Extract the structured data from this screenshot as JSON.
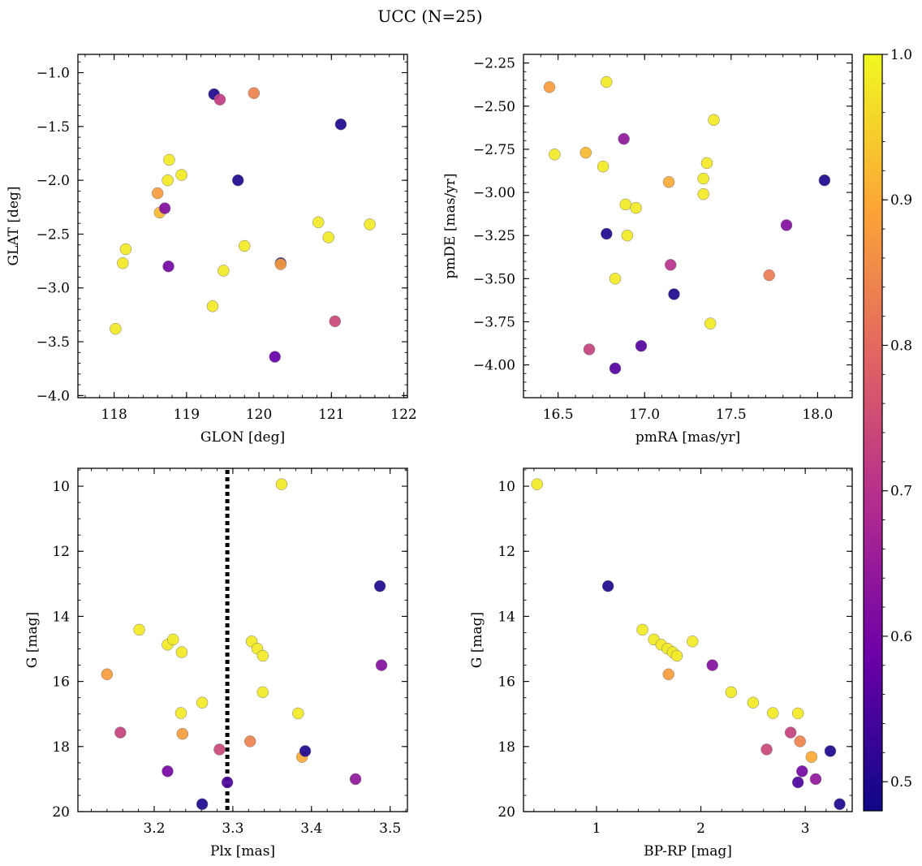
{
  "figure": {
    "suptitle": "UCC (N=25)"
  },
  "colorbar": {
    "min": 0.48,
    "max": 1.0,
    "ticks": [
      0.5,
      0.6,
      0.7,
      0.8,
      0.9,
      1.0
    ],
    "tick_labels": [
      "0.5",
      "0.6",
      "0.7",
      "0.8",
      "0.9",
      "1.0"
    ],
    "colormap": "plasma",
    "colormap_stops": [
      "#0d0887",
      "#6a00a8",
      "#b12a90",
      "#e16462",
      "#fca636",
      "#f0f921"
    ]
  },
  "chart_data": [
    {
      "type": "scatter",
      "xlabel": "GLON [deg]",
      "ylabel": "GLAT [deg]",
      "xlim": [
        117.5,
        122.05
      ],
      "ylim": [
        -4.02,
        -0.83
      ],
      "xticks": [
        118,
        119,
        120,
        121,
        122
      ],
      "xtick_labels": [
        "118",
        "119",
        "120",
        "121",
        "122"
      ],
      "yticks": [
        -4.0,
        -3.5,
        -3.0,
        -2.5,
        -2.0,
        -1.5,
        -1.0
      ],
      "ytick_labels": [
        "−4.0",
        "−3.5",
        "−3.0",
        "−2.5",
        "−2.0",
        "−1.5",
        "−1.0"
      ],
      "y_inverted": false,
      "points": [
        {
          "x": 118.02,
          "y": -3.38,
          "c": 0.98
        },
        {
          "x": 118.12,
          "y": -2.77,
          "c": 0.98
        },
        {
          "x": 118.16,
          "y": -2.64,
          "c": 0.98
        },
        {
          "x": 118.6,
          "y": -2.12,
          "c": 0.88
        },
        {
          "x": 118.63,
          "y": -2.3,
          "c": 0.92
        },
        {
          "x": 118.7,
          "y": -2.26,
          "c": 0.62
        },
        {
          "x": 118.74,
          "y": -2.0,
          "c": 0.98
        },
        {
          "x": 118.76,
          "y": -1.81,
          "c": 0.98
        },
        {
          "x": 118.75,
          "y": -2.8,
          "c": 0.6
        },
        {
          "x": 118.93,
          "y": -1.95,
          "c": 0.98
        },
        {
          "x": 119.36,
          "y": -3.17,
          "c": 0.98
        },
        {
          "x": 119.38,
          "y": -1.2,
          "c": 0.5
        },
        {
          "x": 119.46,
          "y": -1.25,
          "c": 0.72
        },
        {
          "x": 119.51,
          "y": -2.84,
          "c": 0.98
        },
        {
          "x": 119.71,
          "y": -2.0,
          "c": 0.5
        },
        {
          "x": 119.8,
          "y": -2.61,
          "c": 0.98
        },
        {
          "x": 119.93,
          "y": -1.19,
          "c": 0.84
        },
        {
          "x": 120.22,
          "y": -3.64,
          "c": 0.58
        },
        {
          "x": 120.3,
          "y": -2.77,
          "c": 0.5
        },
        {
          "x": 120.3,
          "y": -2.78,
          "c": 0.88
        },
        {
          "x": 120.82,
          "y": -2.39,
          "c": 0.98
        },
        {
          "x": 120.96,
          "y": -2.53,
          "c": 0.98
        },
        {
          "x": 121.05,
          "y": -3.31,
          "c": 0.74
        },
        {
          "x": 121.13,
          "y": -1.48,
          "c": 0.5
        },
        {
          "x": 121.53,
          "y": -2.41,
          "c": 0.98
        }
      ]
    },
    {
      "type": "scatter",
      "xlabel": "pmRA [mas/yr]",
      "ylabel": "pmDE [mas/yr]",
      "xlim": [
        16.3,
        18.2
      ],
      "ylim": [
        -4.19,
        -2.2
      ],
      "xticks": [
        16.5,
        17.0,
        17.5,
        18.0
      ],
      "xtick_labels": [
        "16.5",
        "17.0",
        "17.5",
        "18.0"
      ],
      "yticks": [
        -4.0,
        -3.75,
        -3.5,
        -3.25,
        -3.0,
        -2.75,
        -2.5,
        -2.25
      ],
      "ytick_labels": [
        "−4.00",
        "−3.75",
        "−3.50",
        "−3.25",
        "−3.00",
        "−2.75",
        "−2.50",
        "−2.25"
      ],
      "y_inverted": false,
      "points": [
        {
          "x": 16.45,
          "y": -2.39,
          "c": 0.88
        },
        {
          "x": 16.48,
          "y": -2.78,
          "c": 0.98
        },
        {
          "x": 16.66,
          "y": -2.77,
          "c": 0.92
        },
        {
          "x": 16.68,
          "y": -3.91,
          "c": 0.73
        },
        {
          "x": 16.76,
          "y": -2.85,
          "c": 0.98
        },
        {
          "x": 16.78,
          "y": -2.36,
          "c": 0.98
        },
        {
          "x": 16.78,
          "y": -3.24,
          "c": 0.5
        },
        {
          "x": 16.83,
          "y": -3.5,
          "c": 0.98
        },
        {
          "x": 16.83,
          "y": -4.02,
          "c": 0.56
        },
        {
          "x": 16.88,
          "y": -2.69,
          "c": 0.64
        },
        {
          "x": 16.89,
          "y": -3.07,
          "c": 0.98
        },
        {
          "x": 16.9,
          "y": -3.25,
          "c": 0.98
        },
        {
          "x": 16.95,
          "y": -3.09,
          "c": 0.98
        },
        {
          "x": 16.98,
          "y": -3.89,
          "c": 0.56
        },
        {
          "x": 17.14,
          "y": -2.94,
          "c": 0.9
        },
        {
          "x": 17.15,
          "y": -3.42,
          "c": 0.7
        },
        {
          "x": 17.17,
          "y": -3.59,
          "c": 0.5
        },
        {
          "x": 17.34,
          "y": -2.92,
          "c": 0.98
        },
        {
          "x": 17.34,
          "y": -3.01,
          "c": 0.98
        },
        {
          "x": 17.36,
          "y": -2.83,
          "c": 0.98
        },
        {
          "x": 17.38,
          "y": -3.76,
          "c": 0.98
        },
        {
          "x": 17.4,
          "y": -2.58,
          "c": 0.98
        },
        {
          "x": 17.72,
          "y": -3.48,
          "c": 0.83
        },
        {
          "x": 17.82,
          "y": -3.19,
          "c": 0.62
        },
        {
          "x": 18.04,
          "y": -2.93,
          "c": 0.5
        }
      ]
    },
    {
      "type": "scatter",
      "xlabel": "Plx [mas]",
      "ylabel": "G [mag]",
      "xlim": [
        3.103,
        3.522
      ],
      "ylim": [
        20.0,
        9.45
      ],
      "xticks": [
        3.2,
        3.3,
        3.4,
        3.5
      ],
      "xtick_labels": [
        "3.2",
        "3.3",
        "3.4",
        "3.5"
      ],
      "yticks": [
        10,
        12,
        14,
        16,
        18,
        20
      ],
      "ytick_labels": [
        "10",
        "12",
        "14",
        "16",
        "18",
        "20"
      ],
      "y_inverted": true,
      "vline": {
        "x": 3.293,
        "style": "dotted",
        "color": "#000000"
      },
      "points": [
        {
          "x": 3.14,
          "y": 15.78,
          "c": 0.88
        },
        {
          "x": 3.157,
          "y": 17.57,
          "c": 0.73
        },
        {
          "x": 3.181,
          "y": 14.41,
          "c": 0.98
        },
        {
          "x": 3.217,
          "y": 14.87,
          "c": 0.98
        },
        {
          "x": 3.217,
          "y": 18.76,
          "c": 0.6
        },
        {
          "x": 3.224,
          "y": 14.71,
          "c": 0.98
        },
        {
          "x": 3.235,
          "y": 15.1,
          "c": 0.98
        },
        {
          "x": 3.234,
          "y": 16.97,
          "c": 0.98
        },
        {
          "x": 3.236,
          "y": 17.61,
          "c": 0.88
        },
        {
          "x": 3.261,
          "y": 16.65,
          "c": 0.98
        },
        {
          "x": 3.261,
          "y": 19.77,
          "c": 0.5
        },
        {
          "x": 3.283,
          "y": 18.09,
          "c": 0.74
        },
        {
          "x": 3.293,
          "y": 19.1,
          "c": 0.55
        },
        {
          "x": 3.322,
          "y": 17.84,
          "c": 0.84
        },
        {
          "x": 3.324,
          "y": 14.77,
          "c": 0.98
        },
        {
          "x": 3.331,
          "y": 14.99,
          "c": 0.98
        },
        {
          "x": 3.338,
          "y": 15.21,
          "c": 0.98
        },
        {
          "x": 3.338,
          "y": 16.33,
          "c": 0.98
        },
        {
          "x": 3.362,
          "y": 9.94,
          "c": 0.98
        },
        {
          "x": 3.383,
          "y": 16.98,
          "c": 0.98
        },
        {
          "x": 3.388,
          "y": 18.32,
          "c": 0.9
        },
        {
          "x": 3.392,
          "y": 18.14,
          "c": 0.5
        },
        {
          "x": 3.456,
          "y": 19.0,
          "c": 0.64
        },
        {
          "x": 3.487,
          "y": 13.07,
          "c": 0.5
        },
        {
          "x": 3.489,
          "y": 15.5,
          "c": 0.62
        }
      ]
    },
    {
      "type": "scatter",
      "xlabel": "BP-RP [mag]",
      "ylabel": "G [mag]",
      "xlim": [
        0.3,
        3.45
      ],
      "ylim": [
        20.0,
        9.45
      ],
      "xticks": [
        1,
        2,
        3
      ],
      "xtick_labels": [
        "1",
        "2",
        "3"
      ],
      "yticks": [
        10,
        12,
        14,
        16,
        18,
        20
      ],
      "ytick_labels": [
        "10",
        "12",
        "14",
        "16",
        "18",
        "20"
      ],
      "y_inverted": true,
      "points": [
        {
          "x": 0.43,
          "y": 9.94,
          "c": 0.98
        },
        {
          "x": 1.11,
          "y": 13.07,
          "c": 0.5
        },
        {
          "x": 1.44,
          "y": 14.41,
          "c": 0.98
        },
        {
          "x": 1.55,
          "y": 14.71,
          "c": 0.98
        },
        {
          "x": 1.62,
          "y": 14.87,
          "c": 0.98
        },
        {
          "x": 1.68,
          "y": 14.99,
          "c": 0.98
        },
        {
          "x": 1.73,
          "y": 15.1,
          "c": 0.98
        },
        {
          "x": 1.77,
          "y": 15.21,
          "c": 0.98
        },
        {
          "x": 1.69,
          "y": 15.78,
          "c": 0.88
        },
        {
          "x": 1.92,
          "y": 14.77,
          "c": 0.98
        },
        {
          "x": 2.11,
          "y": 15.5,
          "c": 0.62
        },
        {
          "x": 2.29,
          "y": 16.33,
          "c": 0.98
        },
        {
          "x": 2.5,
          "y": 16.65,
          "c": 0.98
        },
        {
          "x": 2.69,
          "y": 16.97,
          "c": 0.98
        },
        {
          "x": 2.63,
          "y": 18.09,
          "c": 0.74
        },
        {
          "x": 2.86,
          "y": 17.57,
          "c": 0.73
        },
        {
          "x": 2.93,
          "y": 16.98,
          "c": 0.98
        },
        {
          "x": 2.95,
          "y": 17.84,
          "c": 0.84
        },
        {
          "x": 2.97,
          "y": 18.76,
          "c": 0.6
        },
        {
          "x": 2.93,
          "y": 19.1,
          "c": 0.55
        },
        {
          "x": 3.06,
          "y": 18.32,
          "c": 0.9
        },
        {
          "x": 3.1,
          "y": 19.0,
          "c": 0.64
        },
        {
          "x": 3.24,
          "y": 18.14,
          "c": 0.5
        },
        {
          "x": 3.33,
          "y": 19.77,
          "c": 0.5
        }
      ]
    }
  ]
}
